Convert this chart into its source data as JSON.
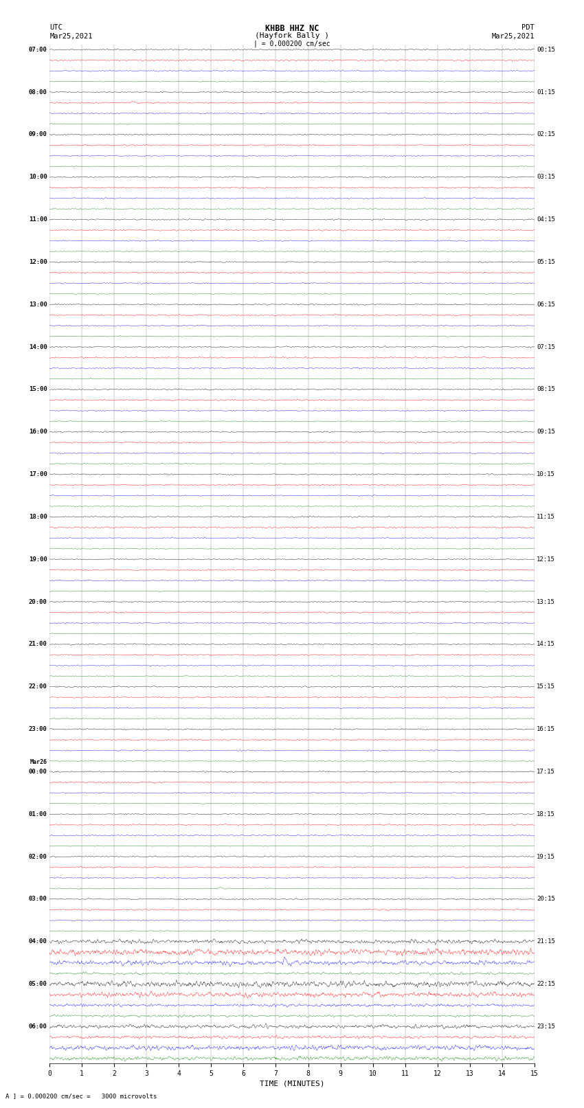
{
  "title_line1": "KHBB HHZ NC",
  "title_line2": "(Hayfork Bally )",
  "scale_text": "| = 0.000200 cm/sec",
  "left_timezone": "UTC",
  "left_date": "Mar25,2021",
  "right_timezone": "PDT",
  "right_date": "Mar25,2021",
  "bottom_label": "TIME (MINUTES)",
  "bottom_note": "A ] = 0.000200 cm/sec =   3000 microvolts",
  "bg_color": "#ffffff",
  "trace_colors": [
    "black",
    "red",
    "blue",
    "green"
  ],
  "xmin": 0,
  "xmax": 15,
  "xticks": [
    0,
    1,
    2,
    3,
    4,
    5,
    6,
    7,
    8,
    9,
    10,
    11,
    12,
    13,
    14,
    15
  ],
  "left_label_utc_times": [
    "07:00",
    "08:00",
    "09:00",
    "10:00",
    "11:00",
    "12:00",
    "13:00",
    "14:00",
    "15:00",
    "16:00",
    "17:00",
    "18:00",
    "19:00",
    "20:00",
    "21:00",
    "22:00",
    "23:00",
    "00:00",
    "01:00",
    "02:00",
    "03:00",
    "04:00",
    "05:00",
    "06:00"
  ],
  "right_label_pdt_times": [
    "00:15",
    "01:15",
    "02:15",
    "03:15",
    "04:15",
    "05:15",
    "06:15",
    "07:15",
    "08:15",
    "09:15",
    "10:15",
    "11:15",
    "12:15",
    "13:15",
    "14:15",
    "15:15",
    "16:15",
    "17:15",
    "18:15",
    "19:15",
    "20:15",
    "21:15",
    "22:15",
    "23:15"
  ],
  "n_groups": 24,
  "traces_per_group": 4,
  "fig_width": 8.5,
  "fig_height": 16.13,
  "dpi": 100,
  "noise_base_amplitude": 0.12,
  "seed": 42,
  "mar26_group_idx": 17
}
